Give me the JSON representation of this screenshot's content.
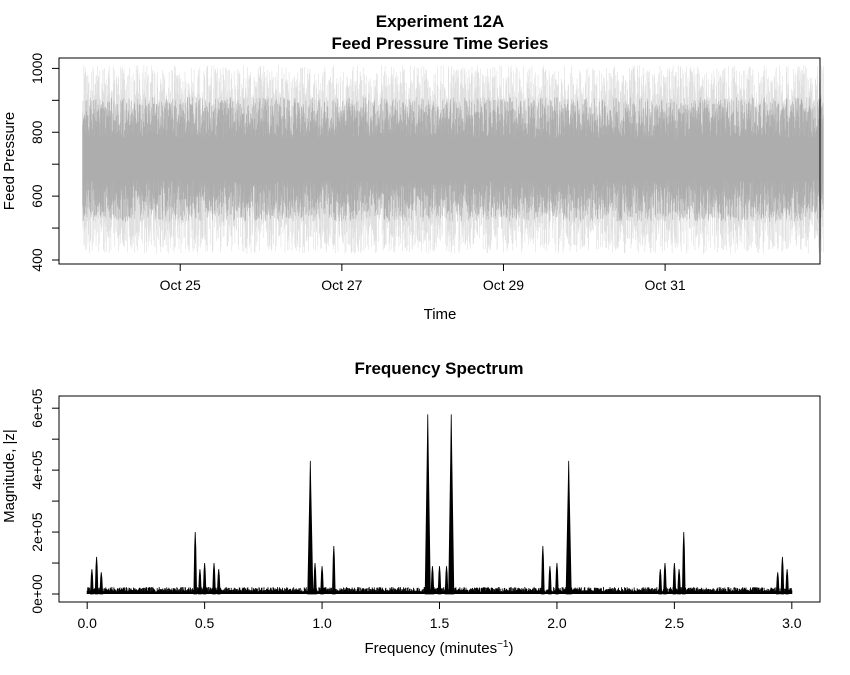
{
  "chart_data": [
    {
      "type": "line",
      "title": "Experiment 12A",
      "subtitle": "Feed Pressure Time Series",
      "xlabel": "Time",
      "ylabel": "Feed Pressure",
      "x_ticks": [
        "Oct 25",
        "Oct 27",
        "Oct 29",
        "Oct 31"
      ],
      "y_ticks": [
        400,
        600,
        800,
        1000
      ],
      "xlim": [
        "2023-10-23T12:00",
        "2023-11-01T22:00"
      ],
      "ylim": [
        400,
        1020
      ],
      "x_start": "2023-10-23T19:00",
      "x_end": "2023-11-01T23:00",
      "y_center": 715,
      "y_spread_min": 420,
      "y_spread_max": 1010,
      "grid": false,
      "color": "#000000"
    },
    {
      "type": "line",
      "title": "Frequency Spectrum",
      "xlabel": "Frequency (minutes",
      "xlabel_sup": "−1",
      "xlabel_close": ")",
      "ylabel": "Magnitude, |z|",
      "x_ticks": [
        "0.0",
        "0.5",
        "1.0",
        "1.5",
        "2.0",
        "2.5",
        "3.0"
      ],
      "y_ticks": [
        "0e+00",
        "2e+05",
        "4e+05",
        "6e+05"
      ],
      "xlim": [
        -0.12,
        3.12
      ],
      "ylim": [
        0,
        620000
      ],
      "noise_floor": 15000,
      "grid": false,
      "color": "#000000",
      "peaks": [
        {
          "x": 0.02,
          "y": 80000
        },
        {
          "x": 0.04,
          "y": 120000
        },
        {
          "x": 0.06,
          "y": 70000
        },
        {
          "x": 0.46,
          "y": 200000
        },
        {
          "x": 0.48,
          "y": 80000
        },
        {
          "x": 0.5,
          "y": 100000
        },
        {
          "x": 0.54,
          "y": 100000
        },
        {
          "x": 0.56,
          "y": 80000
        },
        {
          "x": 0.95,
          "y": 430000
        },
        {
          "x": 0.97,
          "y": 100000
        },
        {
          "x": 1.0,
          "y": 90000
        },
        {
          "x": 1.05,
          "y": 155000
        },
        {
          "x": 1.45,
          "y": 580000
        },
        {
          "x": 1.47,
          "y": 90000
        },
        {
          "x": 1.5,
          "y": 90000
        },
        {
          "x": 1.53,
          "y": 90000
        },
        {
          "x": 1.55,
          "y": 580000
        },
        {
          "x": 1.94,
          "y": 155000
        },
        {
          "x": 1.97,
          "y": 90000
        },
        {
          "x": 2.0,
          "y": 100000
        },
        {
          "x": 2.05,
          "y": 430000
        },
        {
          "x": 2.44,
          "y": 80000
        },
        {
          "x": 2.46,
          "y": 100000
        },
        {
          "x": 2.5,
          "y": 100000
        },
        {
          "x": 2.52,
          "y": 80000
        },
        {
          "x": 2.54,
          "y": 200000
        },
        {
          "x": 2.94,
          "y": 70000
        },
        {
          "x": 2.96,
          "y": 120000
        },
        {
          "x": 2.98,
          "y": 80000
        }
      ]
    }
  ]
}
